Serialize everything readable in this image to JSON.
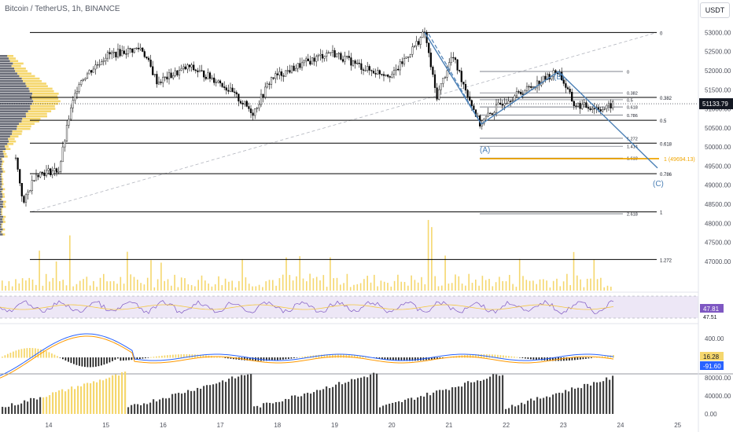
{
  "header": {
    "symbol_title": "Bitcoin / TetherUS, 1h, BINANCE",
    "currency_button": "USDT"
  },
  "colors": {
    "candle": "#000000",
    "volume": "#f5d76e",
    "volume_dark": "#444444",
    "pattern": "#4a7fb5",
    "fib_highlight": "#f0a500",
    "last_price_bg": "#131722",
    "rsi_bg": "#ede7f6",
    "macd_line": "#2962ff",
    "signal_line": "#ff9800"
  },
  "chart_data": {
    "type": "candlestick",
    "x_ticks": [
      "14",
      "15",
      "16",
      "17",
      "18",
      "19",
      "20",
      "21",
      "22",
      "23",
      "24",
      "25"
    ],
    "price_axis_ticks": [
      "53000.00",
      "52500.00",
      "52000.00",
      "51500.00",
      "51000.00",
      "50500.00",
      "50000.00",
      "49500.00",
      "49000.00",
      "48500.00",
      "48000.00",
      "47500.00",
      "47000.00"
    ],
    "price_range": [
      46750,
      53400
    ],
    "last_price": "51133.79",
    "fib_left": [
      {
        "label": "0",
        "price": 53000
      },
      {
        "label": "0.382",
        "price": 51300
      },
      {
        "label": "0.5",
        "price": 50700
      },
      {
        "label": "0.618",
        "price": 50100
      },
      {
        "label": "0.786",
        "price": 49300
      },
      {
        "label": "1",
        "price": 48300
      },
      {
        "label": "1.272",
        "price": 47050
      }
    ],
    "fib_right": [
      {
        "label": "0",
        "price": 51980
      },
      {
        "label": "0.382",
        "price": 51420
      },
      {
        "label": "0.5",
        "price": 51240
      },
      {
        "label": "0.618",
        "price": 51050
      },
      {
        "label": "0.786",
        "price": 50840
      },
      {
        "label": "1.272",
        "price": 50230
      },
      {
        "label": "1.414",
        "price": 50020
      },
      {
        "label": "1.618",
        "price": 49710
      },
      {
        "label": "2.618",
        "price": 48250
      }
    ],
    "fib_target": {
      "label": "1 (49694.13)",
      "price": 49694.13
    },
    "wave_labels": [
      {
        "label": "(A)",
        "price": 50600
      },
      {
        "label": "(B)",
        "price": 52000
      },
      {
        "label": "(C)",
        "price": 49450
      }
    ],
    "rsi": {
      "value_1": "47.81",
      "value_2": "47.51"
    },
    "macd": {
      "axis": [
        "400.00"
      ],
      "value_1": "16.28",
      "value_2": "-91.60"
    },
    "volume_axis": [
      "80000.00",
      "40000.00",
      "0.00"
    ]
  }
}
